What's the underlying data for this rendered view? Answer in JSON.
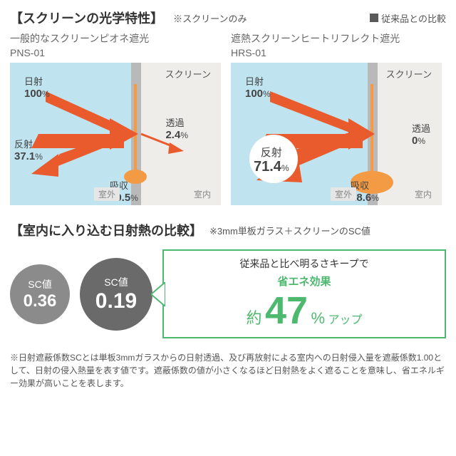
{
  "colors": {
    "accent_orange": "#e95b2c",
    "accent_orange_soft": "#f39a45",
    "sky_bg": "#bfe4ef",
    "indoor_bg": "#efedea",
    "wall_gray": "#b9b9b9",
    "text": "#333333",
    "subtext": "#555555",
    "badge_gray_1": "#8b8b8b",
    "badge_gray_2": "#6a6a6a",
    "promo_green": "#4db96f",
    "legend_dark": "#5a5a5a"
  },
  "header1": {
    "title": "【スクリーンの光学特性】",
    "note": "※スクリーンのみ",
    "legend": "従来品との比較"
  },
  "panels": [
    {
      "label": "一般的なスクリーンピオネ遮光",
      "code": "PNS-01",
      "screen_label": "スクリーン",
      "room_out": "室外",
      "room_in": "室内",
      "solar": {
        "label": "日射",
        "value": "100",
        "pct": "%"
      },
      "reflect": {
        "label": "反射",
        "value": "37.1",
        "pct": "%"
      },
      "transmit": {
        "label": "透過",
        "value": "2.4",
        "pct": "%"
      },
      "absorb": {
        "label": "吸収",
        "value": "60.5",
        "pct": "%"
      },
      "absorb_ellipse_r": 16,
      "reflect_highlight": false
    },
    {
      "label": "遮熱スクリーンヒートリフレクト遮光",
      "code": "HRS-01",
      "screen_label": "スクリーン",
      "room_out": "室外",
      "room_in": "室内",
      "solar": {
        "label": "日射",
        "value": "100",
        "pct": "%"
      },
      "reflect": {
        "label": "反射",
        "value": "71.4",
        "pct": "%"
      },
      "transmit": {
        "label": "透過",
        "value": "0",
        "pct": "%"
      },
      "absorb": {
        "label": "吸収",
        "value": "28.6",
        "pct": "%"
      },
      "absorb_ellipse_r": 30,
      "reflect_highlight": true
    }
  ],
  "header2": {
    "title": "【室内に入り込む日射熱の比較】",
    "note": "※3mm単板ガラス＋スクリーンのSC値"
  },
  "sc": [
    {
      "label": "SC値",
      "value": "0.36",
      "size": 84,
      "bg_key": "badge_gray_1",
      "num_fs": 24
    },
    {
      "label": "SC値",
      "value": "0.19",
      "size": 102,
      "bg_key": "badge_gray_2",
      "num_fs": 30
    }
  ],
  "promo": {
    "top": "従来品と比べ明るさキープで",
    "tag": "省エネ効果",
    "approx": "約",
    "number": "47",
    "pct": "%",
    "up": "アップ",
    "number_fs": 54,
    "approx_fs": 22
  },
  "footnote": "※日射遮蔽係数SCとは単板3mmガラスからの日射透過、及び再放射による室内への日射侵入量を遮蔽係数1.00として、日射の侵入熱量を表す値です。遮蔽係数の値が小さくなるほど日射熱をよく遮ることを意味し、省エネルギー効果が高いことを表します。"
}
